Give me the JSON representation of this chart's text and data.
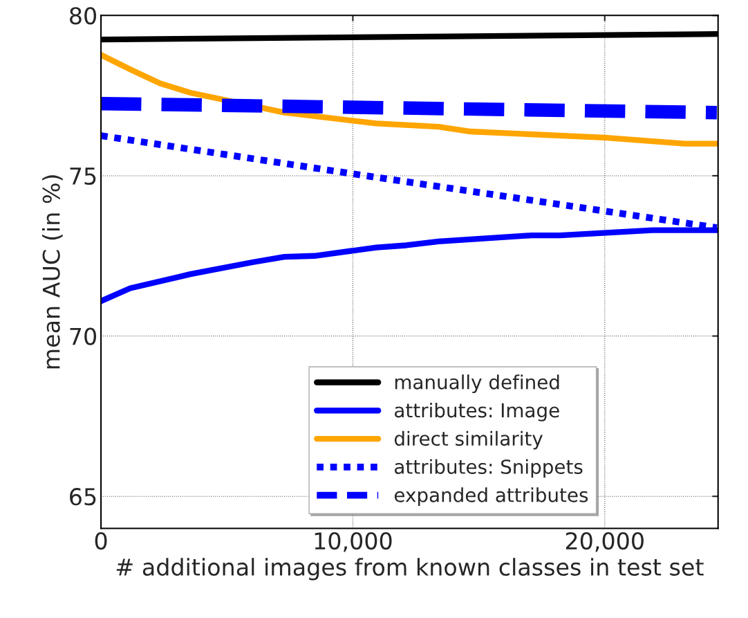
{
  "chart_data": {
    "type": "line",
    "xlabel": "# additional images from known classes in test set",
    "ylabel": "mean AUC (in %)",
    "xlim": [
      0,
      24500
    ],
    "ylim": [
      64,
      80
    ],
    "xticks": [
      0,
      {
        "value": 10000,
        "label": "10,000"
      },
      {
        "value": 20000,
        "label": "20,000"
      }
    ],
    "yticks": [
      65,
      70,
      75,
      80
    ],
    "grid": true,
    "legend": "bottom",
    "marker": "none",
    "series": [
      {
        "name": "manually defined",
        "color": "#000000",
        "line_style": "solid",
        "x": [
          0,
          24450
        ],
        "values": [
          79.25,
          79.42
        ]
      },
      {
        "name": "attributes: Image",
        "color": "#0000ff",
        "line_style": "solid",
        "x": [
          0,
          1160,
          3550,
          6010,
          7280,
          8470,
          10930,
          12120,
          13400,
          17100,
          18220,
          21900,
          24450
        ],
        "values": [
          71.09,
          71.49,
          71.93,
          72.3,
          72.47,
          72.5,
          72.76,
          72.83,
          72.95,
          73.14,
          73.14,
          73.3,
          73.3
        ]
      },
      {
        "name": "direct similarity",
        "color": "#ffa500",
        "line_style": "solid",
        "x": [
          0,
          1160,
          2350,
          3550,
          7280,
          10930,
          13400,
          14670,
          20000,
          23180,
          24450
        ],
        "values": [
          78.77,
          78.32,
          77.88,
          77.59,
          76.97,
          76.63,
          76.53,
          76.38,
          76.19,
          76.0,
          76.0
        ]
      },
      {
        "name": "attributes: Snippets",
        "color": "#0000ff",
        "line_style": "dotted",
        "x": [
          0,
          10000,
          24450
        ],
        "values": [
          76.25,
          75.06,
          73.38
        ]
      },
      {
        "name": "expanded attributes",
        "color": "#0000ff",
        "line_style": "dashed",
        "x": [
          0,
          24450
        ],
        "values": [
          77.25,
          76.97
        ]
      }
    ]
  }
}
